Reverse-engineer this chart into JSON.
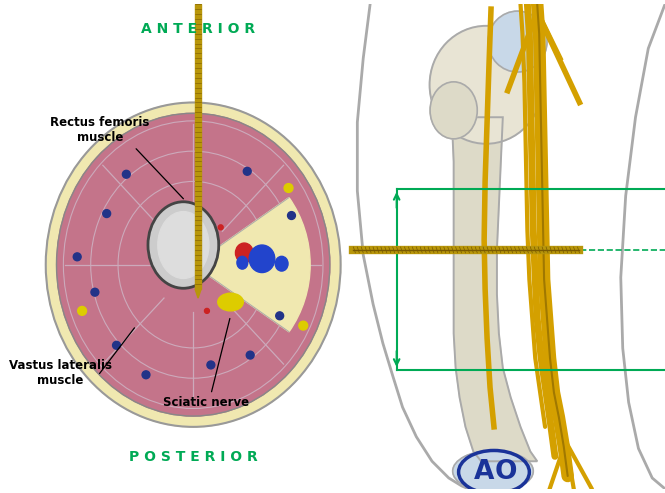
{
  "background_color": "#ffffff",
  "anterior_text": "A N T E R I O R",
  "posterior_text": "P O S T E R I O R",
  "label_rectus": "Rectus femoris\nmuscle",
  "label_vastus": "Vastus lateralis\nmuscle",
  "label_sciatic": "Sciatic nerve",
  "green_color": "#00aa55",
  "muscle_color": "#c4748a",
  "fat_color": "#f0e8b0",
  "pin_color": "#b8960a",
  "nerve_color": "#d4a000",
  "femur_bone_color": "#dddac8",
  "femur_bone_light": "#e8e4d4",
  "femur_bone_outline": "#aaaaaa",
  "red_vessel": "#cc2222",
  "blue_vessel": "#2244cc",
  "yellow_nerve": "#ddcc00",
  "dark_blue_dot": "#223388",
  "AO_color": "#1a3399"
}
